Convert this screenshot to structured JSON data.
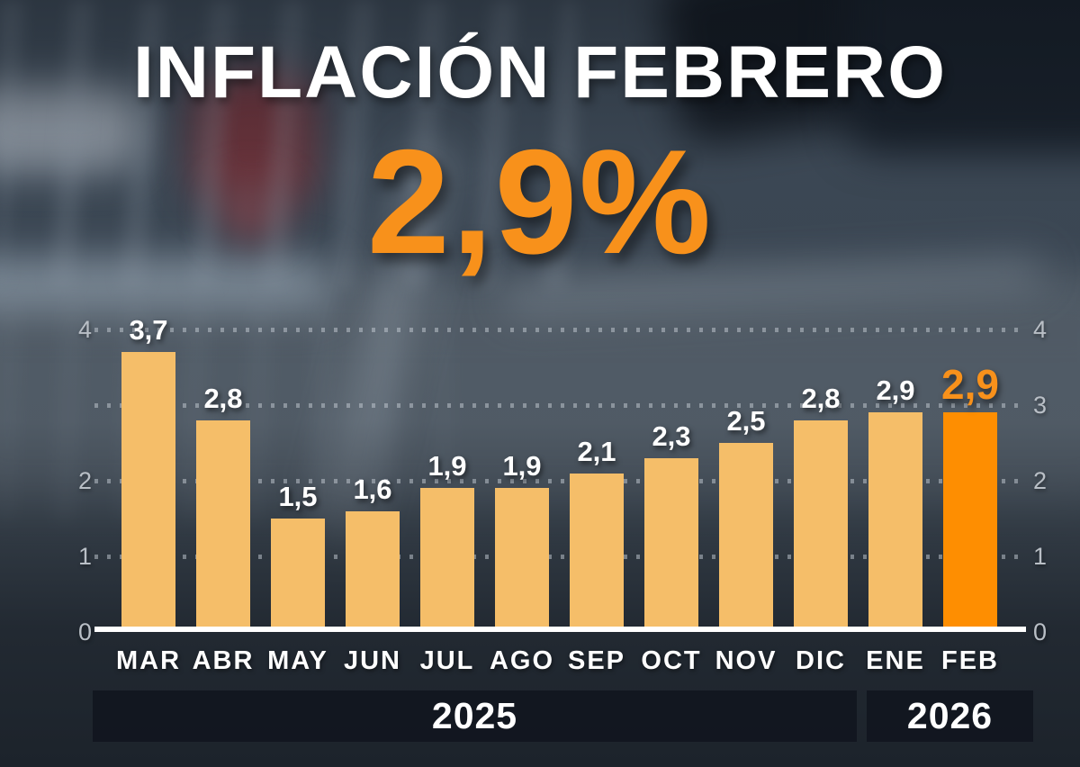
{
  "header": {
    "title": "INFLACIÓN FEBRERO",
    "value": "2,9%"
  },
  "chart_data": {
    "type": "bar",
    "title": "INFLACIÓN FEBRERO",
    "categories": [
      "MAR",
      "ABR",
      "MAY",
      "JUN",
      "JUL",
      "AGO",
      "SEP",
      "OCT",
      "NOV",
      "DIC",
      "ENE",
      "FEB"
    ],
    "values": [
      3.7,
      2.8,
      1.5,
      1.6,
      1.9,
      1.9,
      2.1,
      2.3,
      2.5,
      2.8,
      2.9,
      2.9
    ],
    "value_labels": [
      "3,7",
      "2,8",
      "1,5",
      "1,6",
      "1,9",
      "1,9",
      "2,1",
      "2,3",
      "2,5",
      "2,8",
      "2,9",
      "2,9"
    ],
    "highlight_index": 11,
    "ylim": [
      0,
      4
    ],
    "grid": "dotted horizontal lines at 1, 2, 3, 4",
    "y_axis": {
      "left_ticks": [
        {
          "value": 4,
          "label": "4"
        },
        {
          "value": 2,
          "label": "2"
        },
        {
          "value": 1,
          "label": "1"
        },
        {
          "value": 0,
          "label": "0"
        }
      ],
      "right_ticks": [
        {
          "value": 4,
          "label": "4"
        },
        {
          "value": 3,
          "label": "3"
        },
        {
          "value": 2,
          "label": "2"
        },
        {
          "value": 1,
          "label": "1"
        },
        {
          "value": 0,
          "label": "0"
        }
      ],
      "gridline_values": [
        1,
        2,
        3,
        4
      ]
    },
    "x_groups": [
      {
        "label": "2025",
        "months": [
          "MAR",
          "ABR",
          "MAY",
          "JUN",
          "JUL",
          "AGO",
          "SEP",
          "OCT",
          "NOV",
          "DIC"
        ]
      },
      {
        "label": "2026",
        "months": [
          "ENE",
          "FEB"
        ]
      }
    ],
    "colors": {
      "bar": "#f5be69",
      "bar_highlight": "#fe8e01",
      "accent_orange": "#f8911b",
      "label_white": "#ffffff",
      "axis_gray": "#b9bfc6"
    }
  }
}
